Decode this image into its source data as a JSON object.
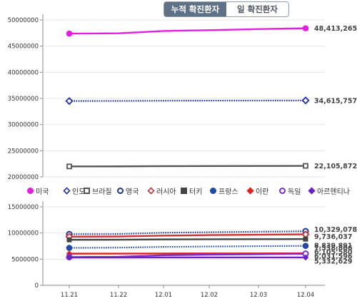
{
  "tabs": [
    {
      "label": "누적 확진환자",
      "active": true
    },
    {
      "label": "일 확진환자",
      "active": false
    }
  ],
  "chart_data": {
    "type": "line",
    "x": [
      "11.21",
      "11.22",
      "12.01",
      "12.02",
      "12.03",
      "12.04"
    ],
    "y_ticks_top": [
      "50000000",
      "45000000",
      "40000000",
      "35000000",
      "30000000",
      "25000000",
      "20000000"
    ],
    "y_ticks_bottom": [
      "15000000",
      "10000000",
      "5000000",
      "0"
    ],
    "ylim_top": [
      20000000,
      50000000
    ],
    "ylim_bottom": [
      0,
      15000000
    ],
    "grid": "horizontal",
    "legend_position": "middle",
    "series": [
      {
        "name": "미국",
        "color": "#e31ee3",
        "marker": "filled-circle",
        "dash": "solid",
        "panel": "top",
        "values": [
          47400000,
          47450000,
          47900000,
          48050000,
          48250000,
          48413265
        ],
        "end_label": "48,413,265"
      },
      {
        "name": "인도",
        "color": "#1d2fae",
        "marker": "hollow-diamond",
        "dash": "dotted",
        "panel": "top",
        "values": [
          34500000,
          34520000,
          34560000,
          34580000,
          34600000,
          34615757
        ],
        "end_label": "34,615,757"
      },
      {
        "name": "브라질",
        "color": "#555555",
        "marker": "hollow-square",
        "dash": "solid",
        "panel": "top",
        "values": [
          22000000,
          22010000,
          22050000,
          22070000,
          22090000,
          22105872
        ],
        "end_label": "22,105,872"
      },
      {
        "name": "영국",
        "color": "#1d3a96",
        "marker": "hollow-circle",
        "dash": "dotted",
        "panel": "bottom",
        "values": [
          9770000,
          9800000,
          10050000,
          10150000,
          10250000,
          10329078
        ],
        "end_label": "10,329,078"
      },
      {
        "name": "러시아",
        "color": "#d03030",
        "marker": "hollow-diamond",
        "dash": "solid",
        "panel": "bottom",
        "values": [
          9300000,
          9330000,
          9500000,
          9600000,
          9680000,
          9736037
        ],
        "end_label": "9,736,037"
      },
      {
        "name": "터키",
        "color": "#444444",
        "marker": "filled-square",
        "dash": "solid",
        "panel": "bottom",
        "values": [
          8700000,
          8720000,
          8780000,
          8800000,
          8820000,
          8839891
        ],
        "end_label": "8,839,891"
      },
      {
        "name": "프랑스",
        "color": "#1f4aa8",
        "marker": "filled-circle",
        "dash": "dotted",
        "panel": "bottom",
        "values": [
          7150000,
          7200000,
          7350000,
          7420000,
          7490000,
          7538806
        ],
        "end_label": "7,538,806"
      },
      {
        "name": "이란",
        "color": "#e02020",
        "marker": "filled-diamond",
        "dash": "solid",
        "panel": "bottom",
        "values": [
          6050000,
          6060000,
          6080000,
          6090000,
          6100000,
          6105580
        ],
        "end_label": "6,105,580"
      },
      {
        "name": "독일",
        "color": "#7a2fd0",
        "marker": "hollow-circle",
        "dash": "solid",
        "panel": "bottom",
        "values": [
          5400000,
          5450000,
          5750000,
          5850000,
          5950000,
          6031596
        ],
        "end_label": "6,031,596"
      },
      {
        "name": "아르헨티나",
        "color": "#6a22c8",
        "marker": "filled-diamond",
        "dash": "solid",
        "panel": "bottom",
        "values": [
          5315000,
          5318000,
          5324000,
          5327000,
          5330000,
          5332629
        ],
        "end_label": "5,332,629"
      }
    ]
  }
}
